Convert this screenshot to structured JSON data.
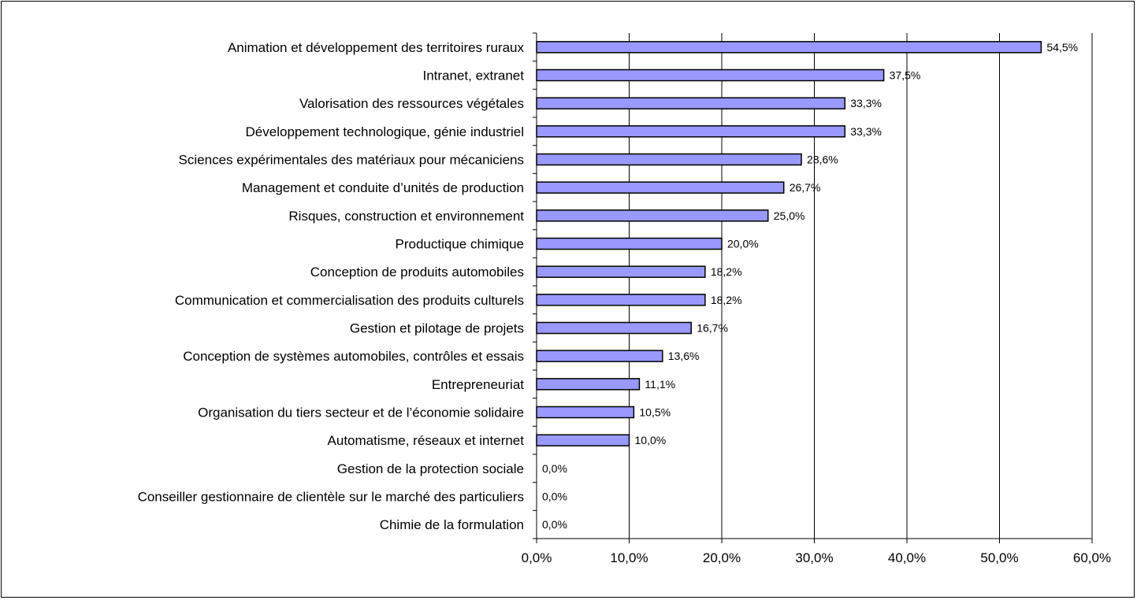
{
  "chart_data": {
    "type": "bar",
    "orientation": "horizontal",
    "title": "",
    "xlabel": "",
    "ylabel": "",
    "categories": [
      "Animation et développement des territoires ruraux",
      "Intranet, extranet",
      "Valorisation des ressources végétales",
      "Développement technologique, génie industriel",
      "Sciences expérimentales des matériaux pour mécaniciens",
      "Management et conduite d’unités de production",
      "Risques, construction et environnement",
      "Productique chimique",
      "Conception de produits automobiles",
      "Communication et commercialisation des produits culturels",
      "Gestion et pilotage de projets",
      "Conception de systèmes automobiles, contrôles et essais",
      "Entrepreneuriat",
      "Organisation du tiers secteur et de l’économie solidaire",
      "Automatisme, réseaux et internet",
      "Gestion de la protection sociale",
      "Conseiller gestionnaire de clientèle sur le marché des particuliers",
      "Chimie de la formulation"
    ],
    "values": [
      54.5,
      37.5,
      33.3,
      33.3,
      28.6,
      26.7,
      25.0,
      20.0,
      18.2,
      18.2,
      16.7,
      13.6,
      11.1,
      10.5,
      10.0,
      0.0,
      0.0,
      0.0
    ],
    "value_labels": [
      "54,5%",
      "37,5%",
      "33,3%",
      "33,3%",
      "28,6%",
      "26,7%",
      "25,0%",
      "20,0%",
      "18,2%",
      "18,2%",
      "16,7%",
      "13,6%",
      "11,1%",
      "10,5%",
      "10,0%",
      "0,0%",
      "0,0%",
      "0,0%"
    ],
    "xlim": [
      0,
      60
    ],
    "xticks": [
      0,
      10,
      20,
      30,
      40,
      50,
      60
    ],
    "xtick_labels": [
      "0,0%",
      "10,0%",
      "20,0%",
      "30,0%",
      "40,0%",
      "50,0%",
      "60,0%"
    ],
    "grid": "vertical",
    "legend": "none",
    "colors": {
      "bar_fill": "#9999ff",
      "bar_stroke": "#000000",
      "grid": "#000000",
      "axis": "#000000"
    }
  }
}
